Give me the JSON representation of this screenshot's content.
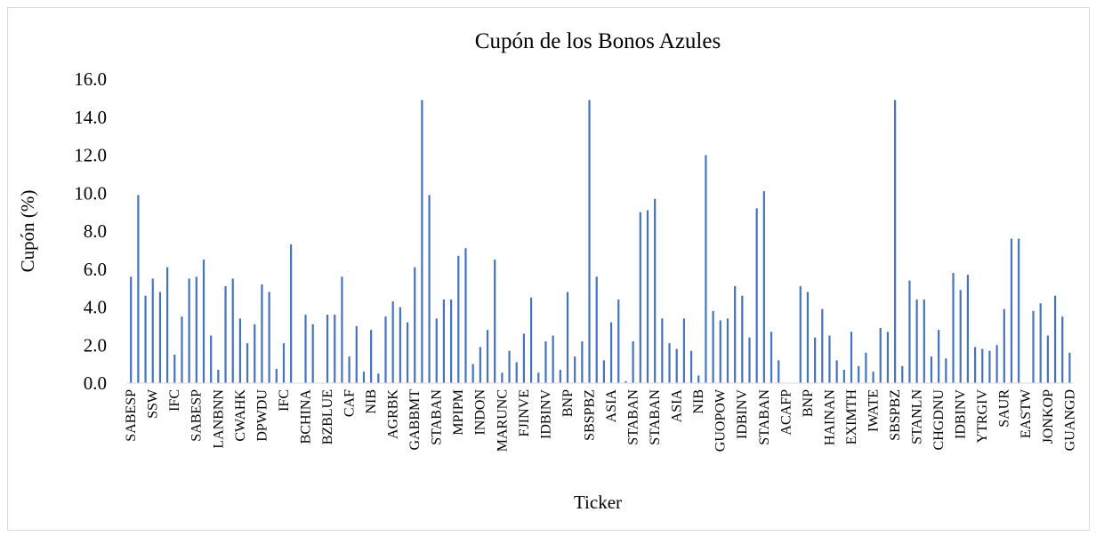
{
  "chart_data": {
    "type": "bar",
    "title": "Cupón de los Bonos Azules",
    "x_label": "Ticker",
    "y_label": "Cupón (%)",
    "categories": [
      "SABESP",
      null,
      null,
      "SSW",
      null,
      null,
      "IFC",
      null,
      null,
      "SABESP",
      null,
      null,
      "LANBNN",
      null,
      null,
      "CWAHK",
      null,
      null,
      "DPWDU",
      null,
      null,
      "IFC",
      null,
      null,
      "BCHINA",
      null,
      null,
      "BZBLUE",
      null,
      null,
      "CAF",
      null,
      null,
      "NIB",
      null,
      null,
      "AGRBK",
      null,
      null,
      "GABBMT",
      null,
      null,
      "STABAN",
      null,
      null,
      "MPIPM",
      null,
      null,
      "INDON",
      null,
      null,
      "MARUNC",
      null,
      null,
      "FJINVE",
      null,
      null,
      "IDBINV",
      null,
      null,
      "BNP",
      null,
      null,
      "SBSPBZ",
      null,
      null,
      "ASIA",
      null,
      null,
      "STABAN",
      null,
      null,
      "STABAN",
      null,
      null,
      "ASIA",
      null,
      null,
      "NIB",
      null,
      null,
      "GUOPOW",
      null,
      null,
      "IDBINV",
      null,
      null,
      "STABAN",
      null,
      null,
      "ACAFP",
      null,
      null,
      "BNP",
      null,
      null,
      "HAINAN",
      null,
      null,
      "EXIMTH",
      null,
      null,
      "IWATE",
      null,
      null,
      "SBSPBZ",
      null,
      null,
      "STANLN",
      null,
      null,
      "CHGDNU",
      null,
      null,
      "IDBINV",
      null,
      null,
      "YTRGIV",
      null,
      null,
      "SAUR",
      null,
      null,
      "EASTW",
      null,
      null,
      "JONKOP",
      null,
      null,
      "GUANGD"
    ],
    "values": [
      5.6,
      9.9,
      4.6,
      5.5,
      4.8,
      6.1,
      1.5,
      3.5,
      5.5,
      5.6,
      6.5,
      2.5,
      0.7,
      5.1,
      5.5,
      3.4,
      2.1,
      3.1,
      5.2,
      4.8,
      0.75,
      2.1,
      7.3,
      0,
      3.6,
      3.1,
      0,
      3.6,
      3.6,
      5.6,
      1.4,
      3.0,
      0.6,
      2.8,
      0.5,
      3.5,
      4.3,
      4.0,
      3.2,
      6.1,
      14.9,
      9.9,
      3.4,
      4.4,
      4.4,
      6.7,
      7.1,
      1.0,
      1.9,
      2.8,
      6.5,
      0.55,
      1.7,
      1.1,
      2.6,
      4.5,
      0.55,
      2.2,
      2.5,
      0.7,
      4.8,
      1.4,
      2.2,
      14.9,
      5.6,
      1.2,
      3.2,
      4.4,
      0.1,
      2.2,
      9.0,
      9.1,
      9.7,
      3.4,
      2.1,
      1.8,
      3.4,
      1.7,
      0.4,
      12.0,
      3.8,
      3.3,
      3.4,
      5.1,
      4.6,
      2.4,
      9.2,
      10.1,
      2.7,
      1.2,
      0,
      0,
      5.1,
      4.8,
      2.4,
      3.9,
      2.5,
      1.2,
      0.7,
      2.7,
      0.9,
      1.6,
      0.6,
      2.9,
      2.7,
      14.9,
      0.9,
      5.4,
      4.4,
      4.4,
      1.4,
      2.8,
      1.3,
      5.8,
      4.9,
      5.7,
      1.9,
      1.8,
      1.7,
      2.0,
      3.9,
      7.6,
      7.6,
      0,
      3.8,
      4.2,
      2.5,
      4.6,
      3.5,
      1.6
    ],
    "color": "#4472c4",
    "ylim": [
      0,
      16
    ],
    "yticks": [
      {
        "value": 0,
        "label": "0.0"
      },
      {
        "value": 2,
        "label": "2.0"
      },
      {
        "value": 4,
        "label": "4.0"
      },
      {
        "value": 6,
        "label": "6.0"
      },
      {
        "value": 8,
        "label": "8.0"
      },
      {
        "value": 10,
        "label": "10.0"
      },
      {
        "value": 12,
        "label": "12.0"
      },
      {
        "value": 14,
        "label": "14.0"
      },
      {
        "value": 16,
        "label": "16.0"
      }
    ],
    "grid": false
  }
}
